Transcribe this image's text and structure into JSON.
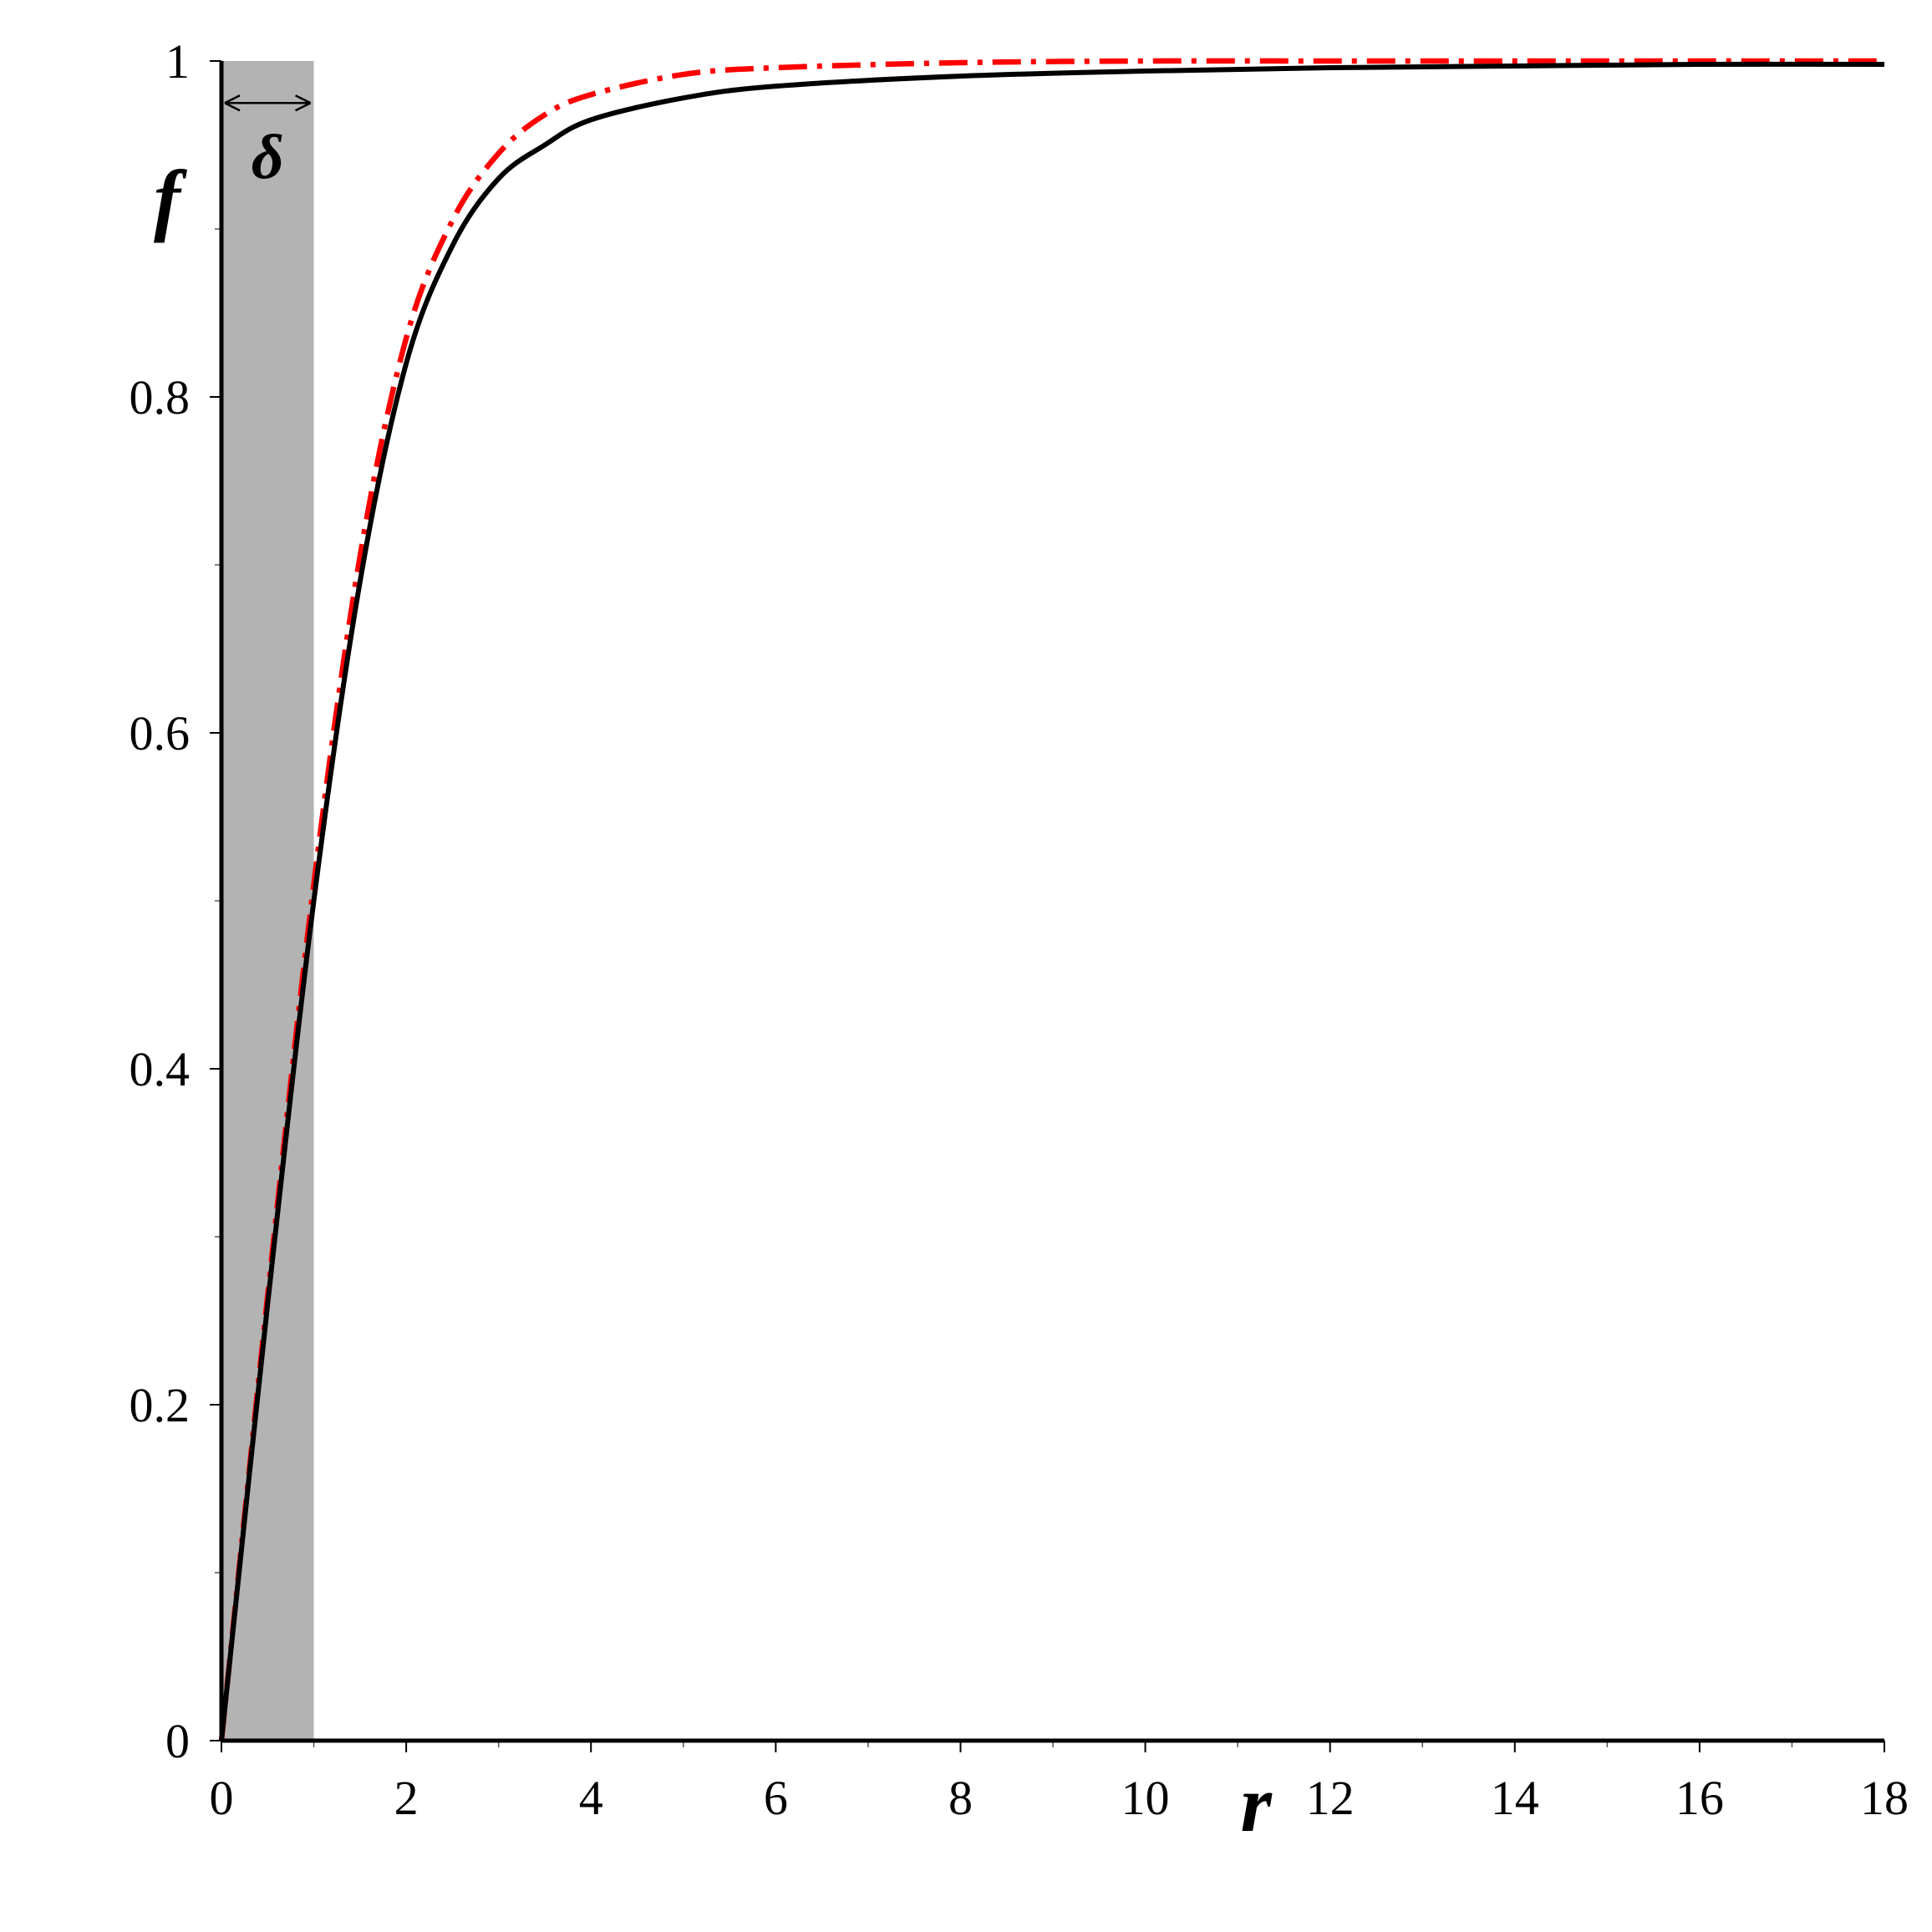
{
  "chart_data": {
    "type": "line",
    "title": "",
    "xlabel": "r",
    "ylabel": "f",
    "xlim": [
      0,
      18
    ],
    "ylim": [
      0,
      1
    ],
    "x_ticks": [
      0,
      2,
      4,
      6,
      8,
      10,
      12,
      14,
      16,
      18
    ],
    "x_tick_labels": [
      "0",
      "2",
      "4",
      "6",
      "8",
      "10",
      "12",
      "14",
      "16",
      "18"
    ],
    "y_ticks": [
      0,
      0.2,
      0.4,
      0.6,
      0.8,
      1
    ],
    "y_tick_labels": [
      "0",
      "0.2",
      "0.4",
      "0.6",
      "0.8",
      "1"
    ],
    "grid": false,
    "shaded_region": {
      "x_from": 0,
      "x_to": 1,
      "color": "#b3b3b3"
    },
    "annotation": {
      "text": "δ",
      "x_from": 0,
      "x_to": 1,
      "y": 0.975
    },
    "series": [
      {
        "style": "solid",
        "color": "#000000",
        "x": [
          0,
          0.5,
          1,
          1.5,
          2,
          2.5,
          3,
          3.5,
          4,
          5,
          6,
          8,
          10,
          12,
          14,
          16,
          18
        ],
        "y": [
          0,
          0.26,
          0.5,
          0.69,
          0.82,
          0.89,
          0.93,
          0.95,
          0.965,
          0.978,
          0.985,
          0.991,
          0.994,
          0.996,
          0.997,
          0.998,
          0.998
        ]
      },
      {
        "style": "dash-dot",
        "color": "#ff0000",
        "x": [
          0,
          0.5,
          1,
          1.5,
          2,
          2.5,
          3,
          3.5,
          4,
          5,
          6,
          8,
          10,
          12,
          14,
          16,
          18
        ],
        "y": [
          0,
          0.265,
          0.51,
          0.705,
          0.835,
          0.905,
          0.945,
          0.968,
          0.98,
          0.992,
          0.996,
          0.999,
          1.0,
          1.0,
          1.0,
          1.0,
          1.0
        ]
      }
    ]
  }
}
